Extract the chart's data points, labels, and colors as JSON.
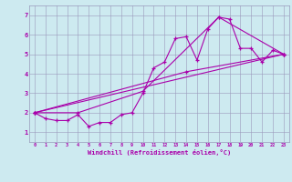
{
  "background_color": "#cdeaf0",
  "plot_bg_color": "#cdeaf0",
  "line_color": "#aa00aa",
  "marker_color": "#aa00aa",
  "grid_color": "#9999bb",
  "xlabel": "Windchill (Refroidissement éolien,°C)",
  "xlabel_color": "#aa00aa",
  "ylabel_color": "#aa00aa",
  "xlim": [
    -0.5,
    23.5
  ],
  "ylim": [
    0.5,
    7.5
  ],
  "yticks": [
    1,
    2,
    3,
    4,
    5,
    6,
    7
  ],
  "xticks": [
    0,
    1,
    2,
    3,
    4,
    5,
    6,
    7,
    8,
    9,
    10,
    11,
    12,
    13,
    14,
    15,
    16,
    17,
    18,
    19,
    20,
    21,
    22,
    23
  ],
  "series": [
    {
      "x": [
        0,
        1,
        2,
        3,
        4,
        5,
        6,
        7,
        8,
        9,
        10,
        11,
        12,
        13,
        14,
        15,
        16,
        17,
        18,
        19,
        20,
        21,
        22,
        23
      ],
      "y": [
        2.0,
        1.7,
        1.6,
        1.6,
        1.9,
        1.3,
        1.5,
        1.5,
        1.9,
        2.0,
        3.0,
        4.3,
        4.6,
        5.8,
        5.9,
        4.7,
        6.3,
        6.9,
        6.8,
        5.3,
        5.3,
        4.6,
        5.2,
        5.0
      ]
    },
    {
      "x": [
        0,
        4,
        10,
        17,
        23
      ],
      "y": [
        2.0,
        2.0,
        3.1,
        6.9,
        5.0
      ]
    },
    {
      "x": [
        0,
        14,
        23
      ],
      "y": [
        2.0,
        4.1,
        5.0
      ]
    },
    {
      "x": [
        0,
        23
      ],
      "y": [
        2.0,
        5.0
      ]
    }
  ]
}
